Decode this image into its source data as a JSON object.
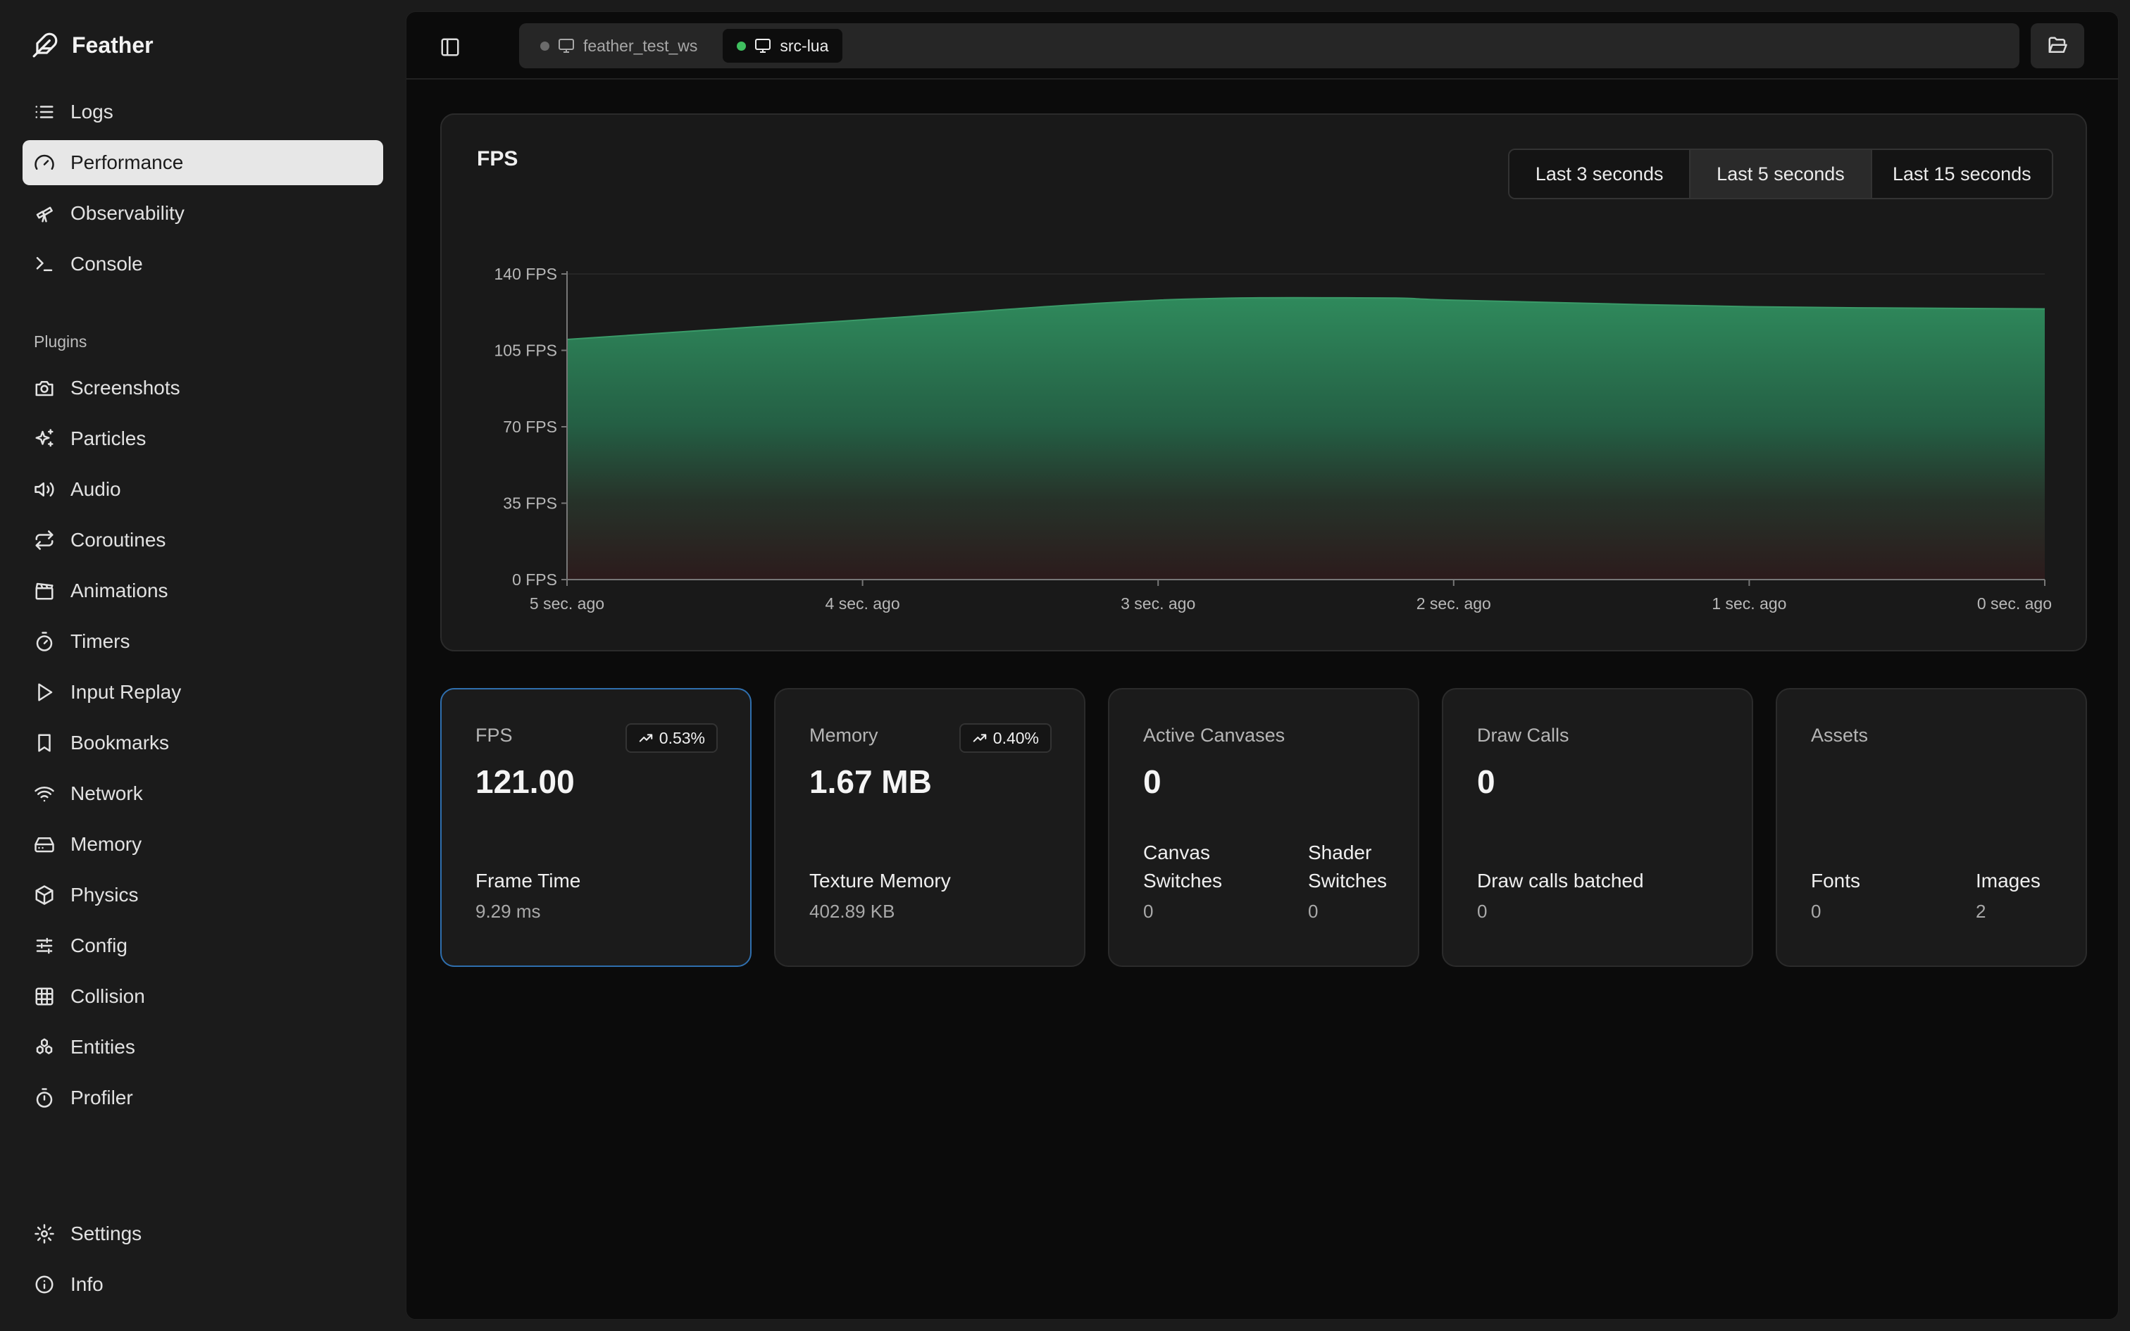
{
  "app": {
    "name": "Feather"
  },
  "nav": {
    "main": [
      {
        "label": "Logs",
        "icon": "list-icon"
      },
      {
        "label": "Performance",
        "icon": "gauge-icon",
        "active": true
      },
      {
        "label": "Observability",
        "icon": "telescope-icon"
      },
      {
        "label": "Console",
        "icon": "terminal-icon"
      }
    ],
    "plugins_label": "Plugins",
    "plugins": [
      {
        "label": "Screenshots",
        "icon": "camera-icon"
      },
      {
        "label": "Particles",
        "icon": "sparkles-icon"
      },
      {
        "label": "Audio",
        "icon": "speaker-icon"
      },
      {
        "label": "Coroutines",
        "icon": "repeat-icon"
      },
      {
        "label": "Animations",
        "icon": "clapperboard-icon"
      },
      {
        "label": "Timers",
        "icon": "timer-icon"
      },
      {
        "label": "Input Replay",
        "icon": "play-icon"
      },
      {
        "label": "Bookmarks",
        "icon": "bookmark-icon"
      },
      {
        "label": "Network",
        "icon": "wifi-icon"
      },
      {
        "label": "Memory",
        "icon": "hard-drive-icon"
      },
      {
        "label": "Physics",
        "icon": "cube-icon"
      },
      {
        "label": "Config",
        "icon": "sliders-icon"
      },
      {
        "label": "Collision",
        "icon": "grid-icon"
      },
      {
        "label": "Entities",
        "icon": "entities-icon"
      },
      {
        "label": "Profiler",
        "icon": "stopwatch-icon"
      }
    ],
    "bottom": [
      {
        "label": "Settings",
        "icon": "gear-icon"
      },
      {
        "label": "Info",
        "icon": "info-icon"
      }
    ]
  },
  "tabs": [
    {
      "label": "feather_test_ws",
      "status_color": "#6b6b6b",
      "active": false
    },
    {
      "label": "src-lua",
      "status_color": "#3fbf5f",
      "active": true
    }
  ],
  "chart": {
    "title": "FPS",
    "ranges": [
      {
        "label": "Last 3 seconds",
        "active": false
      },
      {
        "label": "Last 5 seconds",
        "active": true
      },
      {
        "label": "Last 15 seconds",
        "active": false
      }
    ]
  },
  "chart_data": {
    "type": "area",
    "title": "FPS",
    "x": [
      5,
      4,
      3,
      2.25,
      2,
      1,
      0
    ],
    "xlabels": [
      "5 sec. ago",
      "4 sec. ago",
      "3 sec. ago",
      "2 sec. ago",
      "1 sec. ago",
      "0 sec. ago"
    ],
    "xticks": [
      5,
      4,
      3,
      2,
      1,
      0
    ],
    "series": [
      {
        "values": [
          110,
          119,
          128,
          129,
          128,
          125,
          124
        ]
      }
    ],
    "yticks": [
      "0 FPS",
      "35 FPS",
      "70 FPS",
      "105 FPS",
      "140 FPS"
    ],
    "ytick_values": [
      0,
      35,
      70,
      105,
      140
    ],
    "ylim": [
      0,
      140
    ],
    "xlim": [
      5,
      0
    ],
    "grid": true,
    "colors": {
      "top": "#2f7f57",
      "bottom": "#2a1b1b"
    }
  },
  "stats": [
    {
      "label": "FPS",
      "value": "121.00",
      "badge": "0.53%",
      "selected": true,
      "subs": [
        {
          "label": "Frame Time",
          "value": "9.29 ms"
        }
      ]
    },
    {
      "label": "Memory",
      "value": "1.67 MB",
      "badge": "0.40%",
      "subs": [
        {
          "label": "Texture Memory",
          "value": "402.89 KB"
        }
      ]
    },
    {
      "label": "Active Canvases",
      "value": "0",
      "subs": [
        {
          "label": "Canvas Switches",
          "value": "0"
        },
        {
          "label": "Shader Switches",
          "value": "0"
        }
      ]
    },
    {
      "label": "Draw Calls",
      "value": "0",
      "subs": [
        {
          "label": "Draw calls batched",
          "value": "0"
        }
      ]
    },
    {
      "label": "Assets",
      "value": "",
      "subs": [
        {
          "label": "Fonts",
          "value": "0"
        },
        {
          "label": "Images",
          "value": "2"
        }
      ]
    }
  ]
}
